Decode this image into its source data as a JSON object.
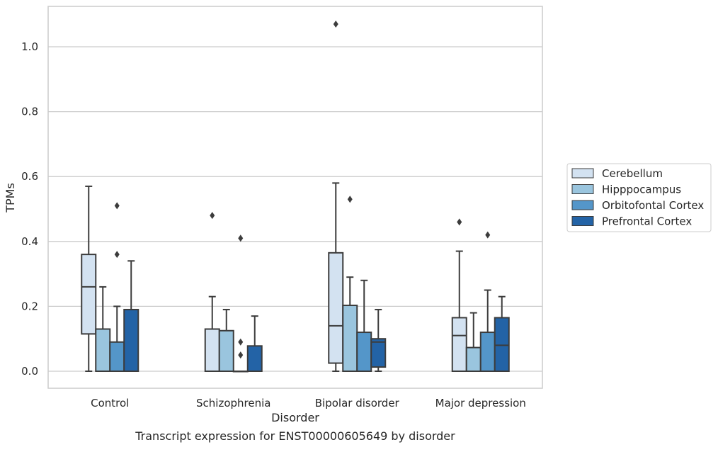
{
  "chart_data": {
    "type": "box",
    "title": "",
    "xlabel": "Disorder",
    "ylabel": "TPMs",
    "ylim": [
      -0.05,
      1.125
    ],
    "yticks": [
      "0.0",
      "0.2",
      "0.4",
      "0.6",
      "0.8",
      "1.0"
    ],
    "grid": true,
    "legend_position": "right",
    "categories": [
      "Control",
      "Schizophrenia",
      "Bipolar disorder",
      "Major depression"
    ],
    "series": [
      {
        "name": "Cerebellum",
        "color": "#d3e2f1",
        "boxes": [
          {
            "whislo": 0.0,
            "q1": 0.115,
            "med": 0.26,
            "q3": 0.36,
            "whishi": 0.57,
            "fliers": []
          },
          {
            "whislo": 0.0,
            "q1": 0.0,
            "med": 0.0,
            "q3": 0.13,
            "whishi": 0.23,
            "fliers": [
              0.48
            ]
          },
          {
            "whislo": 0.0,
            "q1": 0.025,
            "med": 0.14,
            "q3": 0.365,
            "whishi": 0.58,
            "fliers": [
              1.07
            ]
          },
          {
            "whislo": 0.0,
            "q1": 0.0,
            "med": 0.11,
            "q3": 0.165,
            "whishi": 0.37,
            "fliers": [
              0.46
            ]
          }
        ]
      },
      {
        "name": "Hipppocampus",
        "color": "#9ac5de",
        "boxes": [
          {
            "whislo": 0.0,
            "q1": 0.0,
            "med": 0.0,
            "q3": 0.13,
            "whishi": 0.26,
            "fliers": []
          },
          {
            "whislo": 0.0,
            "q1": 0.0,
            "med": 0.0,
            "q3": 0.125,
            "whishi": 0.19,
            "fliers": []
          },
          {
            "whislo": 0.0,
            "q1": 0.0,
            "med": 0.0,
            "q3": 0.203,
            "whishi": 0.29,
            "fliers": [
              0.53
            ]
          },
          {
            "whislo": 0.0,
            "q1": 0.0,
            "med": 0.0,
            "q3": 0.073,
            "whishi": 0.18,
            "fliers": []
          }
        ]
      },
      {
        "name": "Orbitofontal Cortex",
        "color": "#5496c9",
        "boxes": [
          {
            "whislo": 0.0,
            "q1": 0.0,
            "med": 0.0,
            "q3": 0.09,
            "whishi": 0.2,
            "fliers": [
              0.51,
              0.36
            ]
          },
          {
            "whislo": 0.0,
            "q1": 0.0,
            "med": 0.0,
            "q3": 0.0,
            "whishi": 0.0,
            "fliers": [
              0.41,
              0.09,
              0.05
            ]
          },
          {
            "whislo": 0.0,
            "q1": 0.0,
            "med": 0.0,
            "q3": 0.12,
            "whishi": 0.28,
            "fliers": []
          },
          {
            "whislo": 0.0,
            "q1": 0.0,
            "med": 0.0,
            "q3": 0.12,
            "whishi": 0.25,
            "fliers": [
              0.42
            ]
          }
        ]
      },
      {
        "name": "Prefrontal Cortex",
        "color": "#2363a6",
        "boxes": [
          {
            "whislo": 0.0,
            "q1": 0.0,
            "med": 0.0,
            "q3": 0.19,
            "whishi": 0.34,
            "fliers": []
          },
          {
            "whislo": 0.0,
            "q1": 0.0,
            "med": 0.0,
            "q3": 0.078,
            "whishi": 0.17,
            "fliers": []
          },
          {
            "whislo": 0.0,
            "q1": 0.013,
            "med": 0.09,
            "q3": 0.1,
            "whishi": 0.19,
            "fliers": []
          },
          {
            "whislo": 0.0,
            "q1": 0.0,
            "med": 0.08,
            "q3": 0.165,
            "whishi": 0.23,
            "fliers": []
          }
        ]
      }
    ]
  },
  "caption": "Transcript expression for ENST00000605649 by disorder"
}
